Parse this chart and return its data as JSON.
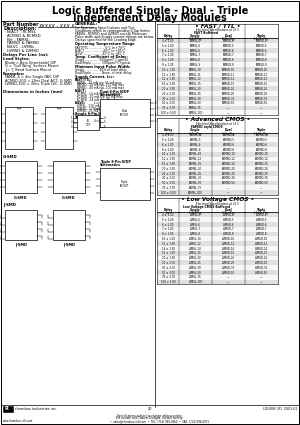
{
  "title_line1": "Logic Buffered Single - Dual - Triple",
  "title_line2": "Independent Delay Modules",
  "bg_color": "#ffffff",
  "fast_ttl_title": "FAST / TTL",
  "adv_cmos_title": "Advanced CMOS",
  "lv_cmos_title": "Low Voltage CMOS",
  "footer_text": "rhombus industries inc.",
  "footer_page": "20",
  "footer_doc": "LOG8SF-3D  2001-01",
  "fast_rows": [
    [
      "4 ± 1.00",
      "FAMSL-4",
      "FAMSD-4",
      "FAMSD-4"
    ],
    [
      "5 ± 1.00",
      "FAMSL-5",
      "FAMSD-5",
      "FAMSD-5"
    ],
    [
      "6 ± 1.00",
      "FAMSL-6",
      "FAMSD-6",
      "FAMSD-6"
    ],
    [
      "7 ± 1.00",
      "FAMSL-7",
      "FAMSD-7",
      "FAMSD-7"
    ],
    [
      "8 ± 1.00",
      "FAMSL-8",
      "FAMSD-8",
      "FAMSD-8"
    ],
    [
      "9 ± 1.00",
      "FAMSL-9",
      "FAMSD-9",
      "FAMSD-9"
    ],
    [
      "10 ± 1.50",
      "FAMSL-10",
      "FAMSD-10",
      "FAMSD-10"
    ],
    [
      "11 ± 1.50",
      "FAMSL-11",
      "FAMSD-11",
      "FAMSD-11"
    ],
    [
      "12 ± 1.50",
      "FAMSL-12",
      "FAMSD-12",
      "FAMSD-12"
    ],
    [
      "15 ± 1.50",
      "FAMSL-15",
      "FAMSD-15",
      "FAMSD-15"
    ],
    [
      "20 ± 1.50",
      "FAMSL-20",
      "FAMSD-20",
      "FAMSD-20"
    ],
    [
      "25 ± 2.00",
      "FAMSL-25",
      "FAMSD-25",
      "FAMSD-25"
    ],
    [
      "30 ± 2.00",
      "FAMSL-30",
      "FAMSD-30",
      "FAMSD-30"
    ],
    [
      "50 ± 3.00",
      "FAMSL-50",
      "FAMSD-50",
      "FAMSD-50"
    ],
    [
      "75 ± 3.75",
      "FAMSL-75",
      "—",
      "—"
    ],
    [
      "100 ± 5.00",
      "FAMSL-100",
      "—",
      "—"
    ]
  ],
  "adv_cmos_rows": [
    [
      "4 ± 1.00",
      "ACMSL-4",
      "ACMSD-4",
      "ACMSD-4"
    ],
    [
      "5 ± 1.00",
      "ACMSL-5",
      "ACMSD-5",
      "ACMSD-5"
    ],
    [
      "6 ± 1.00",
      "ACMSL-6",
      "ACMSD-6",
      "ACMSD-6"
    ],
    [
      "8 ± 1.00",
      "ACMSL-8",
      "ACMSD-8",
      "ACMSD-8"
    ],
    [
      "10 ± 1.00",
      "ACMSL-10",
      "ACMSD-10",
      "ACMSD-10"
    ],
    [
      "12 ± 1.50",
      "ACMSL-12",
      "ACMSD-12",
      "ACMSD-12"
    ],
    [
      "15 ± 1.50",
      "ACMSL-15",
      "ACMSD-15",
      "ACMSD-15"
    ],
    [
      "20 ± 1.50",
      "ACMSL-20",
      "ACMSD-20",
      "ACMSD-20"
    ],
    [
      "25 ± 2.00",
      "ACMSL-25",
      "ACMSD-25",
      "ACMSD-25"
    ],
    [
      "30 ± 2.00",
      "ACMSL-30",
      "ACMSD-30",
      "ACMSD-30"
    ],
    [
      "50 ± 3.00",
      "ACMSL-50",
      "ACMSD-50",
      "ACMSD-50"
    ],
    [
      "75 ± 3.75",
      "ACMSL-75",
      "—",
      "—"
    ],
    [
      "100 ± 5.00",
      "ACMSL-100",
      "—",
      "—"
    ]
  ],
  "lv_cmos_rows": [
    [
      "4 ± 1.00",
      "LVMSL-4",
      "LVMSD-4",
      "LVMSD-4"
    ],
    [
      "5 ± 1.00",
      "LVMSL-5",
      "LVMSD-5",
      "LVMSD-5"
    ],
    [
      "6 ± 1.00",
      "LVMSL-6",
      "LVMSD-6",
      "LVMSD-6"
    ],
    [
      "7 ± 1.00",
      "LVMSL-7",
      "LVMSD-7",
      "LVMSD-7"
    ],
    [
      "8 ± 1.00",
      "LVMSL-8",
      "LVMSD-8",
      "LVMSD-8"
    ],
    [
      "10 ± 1.00",
      "LVMSL-10",
      "LVMSD-10",
      "LVMSD-10"
    ],
    [
      "12 ± 1.50",
      "LVMSL-12",
      "LVMSD-12",
      "LVMSD-12"
    ],
    [
      "14 ± 1.50",
      "LVMSL-14",
      "LVMSD-14",
      "LVMSD-14"
    ],
    [
      "15 ± 1.50",
      "LVMSL-15",
      "LVMSD-15",
      "LVMSD-15"
    ],
    [
      "20 ± 1.50",
      "LVMSL-20",
      "LVMSD-20",
      "LVMSD-20"
    ],
    [
      "25 ± 2.00",
      "LVMSL-25",
      "LVMSD-25",
      "LVMSD-25"
    ],
    [
      "30 ± 2.00",
      "LVMSL-30",
      "LVMSD-30",
      "LVMSD-30"
    ],
    [
      "50 ± 3.00",
      "LVMSL-50",
      "LVMSD-50",
      "LVMSD-50"
    ],
    [
      "75 ± 3.75",
      "LVMSL-75",
      "—",
      "—"
    ],
    [
      "100 ± 5.00",
      "LVMSL-100",
      "—",
      "—"
    ]
  ]
}
